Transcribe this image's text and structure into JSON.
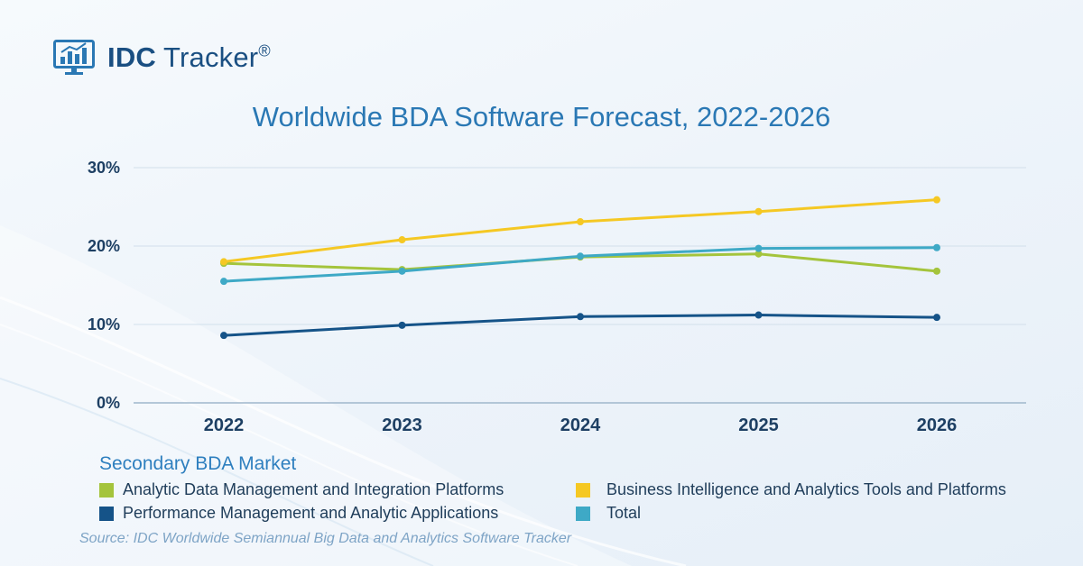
{
  "brand": {
    "name_bold": "IDC",
    "name_rest": "Tracker",
    "mark": "®"
  },
  "chart_data": {
    "type": "line",
    "title": "Worldwide BDA Software Forecast, 2022-2026",
    "xlabel": "",
    "ylabel": "",
    "categories": [
      "2022",
      "2023",
      "2024",
      "2025",
      "2026"
    ],
    "ylim": [
      0,
      30
    ],
    "yticks": [
      0,
      10,
      20,
      30
    ],
    "ytick_labels": [
      "0%",
      "10%",
      "20%",
      "30%"
    ],
    "grid": true,
    "series": [
      {
        "name": "Analytic Data Management and Integration Platforms",
        "color": "#a4c43c",
        "values": [
          17.8,
          17.0,
          18.6,
          19.0,
          16.8
        ]
      },
      {
        "name": "Business Intelligence and Analytics Tools and Platforms",
        "color": "#f5c823",
        "values": [
          18.0,
          20.8,
          23.1,
          24.4,
          25.9
        ]
      },
      {
        "name": "Performance Management and Analytic Applications",
        "color": "#155388",
        "values": [
          8.6,
          9.9,
          11.0,
          11.2,
          10.9
        ]
      },
      {
        "name": "Total",
        "color": "#3ea9c6",
        "values": [
          15.5,
          16.8,
          18.7,
          19.7,
          19.8
        ]
      }
    ],
    "legend_title": "Secondary BDA Market",
    "source": "Source: IDC Worldwide Semiannual Big Data and Analytics Software Tracker"
  }
}
